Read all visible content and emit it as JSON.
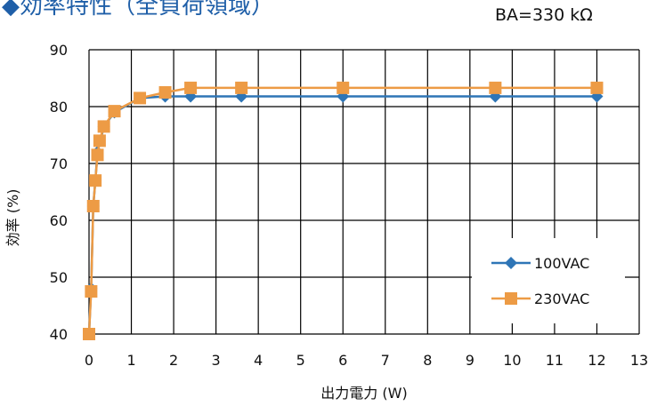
{
  "title": "◆効率特性（全負荷領域）",
  "annotation": "BA=330 kΩ",
  "chart_data": {
    "type": "line",
    "xlabel": "出力電力 (W)",
    "ylabel": "効率 (%)",
    "xlim": [
      0,
      13
    ],
    "ylim": [
      40,
      90
    ],
    "xticks": [
      0,
      1,
      2,
      3,
      4,
      5,
      6,
      7,
      8,
      9,
      10,
      11,
      12,
      13
    ],
    "yticks": [
      40,
      50,
      60,
      70,
      80,
      90
    ],
    "grid": true,
    "legend_position": "bottom-right",
    "series": [
      {
        "name": "100VAC",
        "color": "#2e75b6",
        "marker": "diamond",
        "x": [
          0,
          0.05,
          0.1,
          0.15,
          0.2,
          0.35,
          0.6,
          1.2,
          1.8,
          2.4,
          3.6,
          6,
          9.6,
          12
        ],
        "y": [
          40,
          48,
          62.5,
          67,
          72,
          76.5,
          79,
          81.5,
          81.8,
          81.8,
          81.8,
          81.8,
          81.8,
          81.8
        ]
      },
      {
        "name": "230VAC",
        "color": "#ed9b45",
        "marker": "square",
        "x": [
          0,
          0.05,
          0.1,
          0.15,
          0.2,
          0.25,
          0.35,
          0.6,
          1.2,
          1.8,
          2.4,
          3.6,
          6,
          9.6,
          12
        ],
        "y": [
          40,
          47.5,
          62.5,
          67,
          71.5,
          74,
          76.5,
          79.2,
          81.5,
          82.5,
          83.3,
          83.3,
          83.3,
          83.3,
          83.3
        ]
      }
    ]
  }
}
